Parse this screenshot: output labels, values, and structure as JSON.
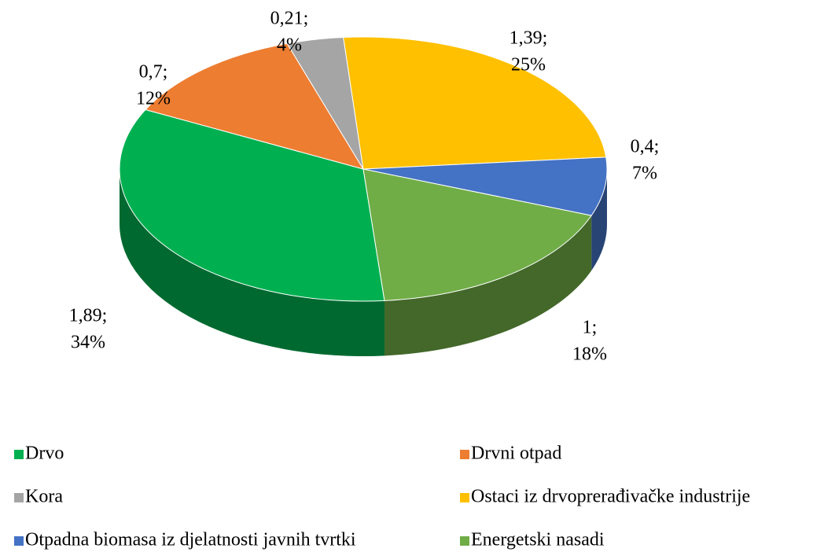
{
  "chart_data": {
    "type": "pie3d",
    "categories": [
      "Drvo",
      "Drvni otpad",
      "Kora",
      "Ostaci iz drvoprerađivačke industrije",
      "Otpadna biomasa iz djelatnosti javnih tvrtki",
      "Energetski nasadi"
    ],
    "values": [
      1.89,
      0.7,
      0.21,
      1.39,
      0.4,
      1
    ],
    "value_labels": [
      "1,89;",
      "0,7;",
      "0,21;",
      "1,39;",
      "0,4;",
      "1;"
    ],
    "percents": [
      34,
      12,
      4,
      25,
      7,
      18
    ],
    "percent_labels": [
      "34%",
      "12%",
      "4%",
      "25%",
      "7%",
      "18%"
    ],
    "colors": [
      "#00b050",
      "#ed7d31",
      "#a5a5a5",
      "#ffc000",
      "#4472c4",
      "#70ad47"
    ],
    "legend": "bottom"
  }
}
